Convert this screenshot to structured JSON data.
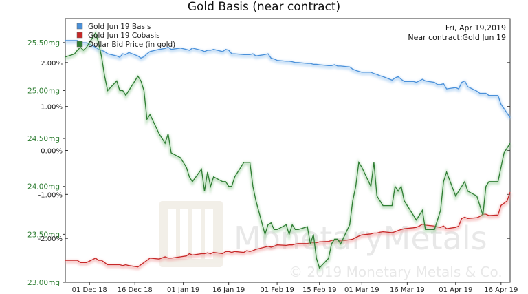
{
  "chart_data": {
    "type": "line",
    "title": "Gold Basis (near contract)",
    "info_date": "Fri, Apr 19,2019",
    "info_contract": "Near contract:Gold Jun 19",
    "watermark": {
      "brand": "MonetaryMetals",
      "copyright": "© 2019 Monetary Metals & Co."
    },
    "x_dates": [
      "2018-11-23",
      "2018-11-26",
      "2018-11-27",
      "2018-11-28",
      "2018-11-29",
      "2018-11-30",
      "2018-12-03",
      "2018-12-04",
      "2018-12-05",
      "2018-12-06",
      "2018-12-07",
      "2018-12-10",
      "2018-12-11",
      "2018-12-12",
      "2018-12-13",
      "2018-12-14",
      "2018-12-17",
      "2018-12-18",
      "2018-12-19",
      "2018-12-20",
      "2018-12-21",
      "2018-12-24",
      "2018-12-26",
      "2018-12-27",
      "2018-12-28",
      "2018-12-31",
      "2019-01-02",
      "2019-01-03",
      "2019-01-04",
      "2019-01-07",
      "2019-01-08",
      "2019-01-09",
      "2019-01-10",
      "2019-01-11",
      "2019-01-14",
      "2019-01-15",
      "2019-01-16",
      "2019-01-17",
      "2019-01-18",
      "2019-01-21",
      "2019-01-22",
      "2019-01-23",
      "2019-01-24",
      "2019-01-25",
      "2019-01-28",
      "2019-01-29",
      "2019-01-30",
      "2019-01-31",
      "2019-02-01",
      "2019-02-04",
      "2019-02-05",
      "2019-02-06",
      "2019-02-07",
      "2019-02-08",
      "2019-02-11",
      "2019-02-12",
      "2019-02-13",
      "2019-02-14",
      "2019-02-15",
      "2019-02-18",
      "2019-02-19",
      "2019-02-20",
      "2019-02-21",
      "2019-02-22",
      "2019-02-25",
      "2019-02-26",
      "2019-02-27",
      "2019-02-28",
      "2019-03-01",
      "2019-03-04",
      "2019-03-05",
      "2019-03-06",
      "2019-03-07",
      "2019-03-08",
      "2019-03-11",
      "2019-03-12",
      "2019-03-13",
      "2019-03-14",
      "2019-03-15",
      "2019-03-18",
      "2019-03-19",
      "2019-03-20",
      "2019-03-21",
      "2019-03-22",
      "2019-03-25",
      "2019-03-26",
      "2019-03-27",
      "2019-03-28",
      "2019-03-29",
      "2019-04-01",
      "2019-04-02",
      "2019-04-03",
      "2019-04-04",
      "2019-04-05",
      "2019-04-08",
      "2019-04-09",
      "2019-04-10",
      "2019-04-11",
      "2019-04-12",
      "2019-04-15",
      "2019-04-16",
      "2019-04-17",
      "2019-04-18",
      "2019-04-19"
    ],
    "x_ticks": [
      {
        "date": "2018-12-01",
        "label": "01 Dec 18"
      },
      {
        "date": "2018-12-16",
        "label": "16 Dec 18"
      },
      {
        "date": "2019-01-01",
        "label": "01 Jan 19"
      },
      {
        "date": "2019-01-16",
        "label": "16 Jan 19"
      },
      {
        "date": "2019-02-01",
        "label": "01 Feb 19"
      },
      {
        "date": "2019-02-15",
        "label": "15 Feb 19"
      },
      {
        "date": "2019-03-01",
        "label": "01 Mar 19"
      },
      {
        "date": "2019-03-16",
        "label": "16 Mar 19"
      },
      {
        "date": "2019-04-01",
        "label": "01 Apr 19"
      },
      {
        "date": "2019-04-16",
        "label": "16 Apr 19"
      }
    ],
    "x_range": [
      "2018-11-23",
      "2019-04-19"
    ],
    "y_right": {
      "unit": "%",
      "range": [
        -3.0,
        3.0
      ],
      "ticks": [
        {
          "value": 2.0,
          "label": "2.00%"
        },
        {
          "value": 1.0,
          "label": "1.00%"
        },
        {
          "value": 0.0,
          "label": "0.00%"
        },
        {
          "value": -1.0,
          "label": "-1.00%"
        },
        {
          "value": -2.0,
          "label": "-2.00%"
        }
      ]
    },
    "y_left": {
      "unit": "mg",
      "range": [
        23.0,
        25.75
      ],
      "ticks": [
        {
          "value": 25.5,
          "label": "25.50mg"
        },
        {
          "value": 25.0,
          "label": "25.00mg"
        },
        {
          "value": 24.5,
          "label": "24.50mg"
        },
        {
          "value": 24.0,
          "label": "24.00mg"
        },
        {
          "value": 23.5,
          "label": "23.50mg"
        },
        {
          "value": 23.0,
          "label": "23.00mg"
        }
      ]
    },
    "grid": false,
    "legend_position": "top-left",
    "series": [
      {
        "name": "Gold Jun 19 Basis",
        "color": "#4a90d9",
        "axis": "right",
        "values": [
          2.5,
          2.5,
          2.5,
          2.45,
          2.45,
          2.45,
          2.35,
          2.3,
          2.28,
          2.25,
          2.2,
          2.15,
          2.12,
          2.2,
          2.18,
          2.23,
          2.15,
          2.1,
          2.13,
          2.2,
          2.25,
          2.3,
          2.32,
          2.35,
          2.3,
          2.33,
          2.3,
          2.28,
          2.33,
          2.28,
          2.25,
          2.28,
          2.28,
          2.3,
          2.25,
          2.3,
          2.28,
          2.2,
          2.2,
          2.18,
          2.18,
          2.18,
          2.2,
          2.15,
          2.18,
          2.2,
          2.1,
          2.08,
          2.05,
          2.03,
          2.03,
          2.02,
          2.0,
          2.0,
          1.98,
          1.98,
          1.96,
          1.96,
          1.95,
          1.93,
          1.93,
          1.95,
          1.92,
          1.92,
          1.9,
          1.85,
          1.82,
          1.8,
          1.78,
          1.78,
          1.75,
          1.73,
          1.7,
          1.68,
          1.6,
          1.65,
          1.68,
          1.62,
          1.57,
          1.57,
          1.55,
          1.58,
          1.62,
          1.58,
          1.55,
          1.5,
          1.5,
          1.52,
          1.4,
          1.43,
          1.4,
          1.55,
          1.58,
          1.45,
          1.35,
          1.3,
          1.3,
          1.3,
          1.25,
          1.25,
          1.05,
          0.95,
          0.85,
          0.75
        ]
      },
      {
        "name": "Gold Jun 19 Cobasis",
        "color": "#c62828",
        "axis": "right",
        "values": [
          -2.5,
          -2.5,
          -2.5,
          -2.55,
          -2.55,
          -2.55,
          -2.45,
          -2.5,
          -2.5,
          -2.55,
          -2.6,
          -2.6,
          -2.6,
          -2.62,
          -2.6,
          -2.62,
          -2.65,
          -2.6,
          -2.55,
          -2.5,
          -2.45,
          -2.47,
          -2.42,
          -2.45,
          -2.45,
          -2.42,
          -2.4,
          -2.35,
          -2.38,
          -2.35,
          -2.35,
          -2.33,
          -2.35,
          -2.32,
          -2.35,
          -2.3,
          -2.3,
          -2.32,
          -2.3,
          -2.32,
          -2.28,
          -2.3,
          -2.28,
          -2.25,
          -2.2,
          -2.18,
          -2.2,
          -2.18,
          -2.15,
          -2.16,
          -2.15,
          -2.15,
          -2.13,
          -2.12,
          -2.12,
          -2.1,
          -2.1,
          -2.1,
          -2.08,
          -2.07,
          -2.05,
          -2.04,
          -2.03,
          -2.06,
          -2.03,
          -2.02,
          -1.98,
          -1.95,
          -1.92,
          -1.9,
          -1.88,
          -1.88,
          -1.86,
          -1.85,
          -1.87,
          -1.85,
          -1.82,
          -1.8,
          -1.78,
          -1.76,
          -1.75,
          -1.72,
          -1.68,
          -1.7,
          -1.72,
          -1.74,
          -1.75,
          -1.72,
          -1.78,
          -1.75,
          -1.72,
          -1.55,
          -1.52,
          -1.55,
          -1.53,
          -1.5,
          -1.45,
          -1.45,
          -1.48,
          -1.47,
          -1.25,
          -1.2,
          -1.15,
          -0.95
        ]
      },
      {
        "name": "Dollar Bid Price (in gold)",
        "color": "#2e7d32",
        "axis": "left",
        "values": [
          25.35,
          25.38,
          25.42,
          25.45,
          25.42,
          25.45,
          25.6,
          25.5,
          25.35,
          25.15,
          25.0,
          25.1,
          25.0,
          25.0,
          24.95,
          25.0,
          25.15,
          25.1,
          25.0,
          24.7,
          24.75,
          24.55,
          24.45,
          24.55,
          24.35,
          24.3,
          24.2,
          24.1,
          24.05,
          24.18,
          23.95,
          24.15,
          24.0,
          24.1,
          24.05,
          24.05,
          24.0,
          24.0,
          24.1,
          24.25,
          24.25,
          24.25,
          24.0,
          23.85,
          23.5,
          23.6,
          23.62,
          23.55,
          23.55,
          23.6,
          23.5,
          23.6,
          23.55,
          23.55,
          23.58,
          23.4,
          23.5,
          23.25,
          23.15,
          23.25,
          23.4,
          23.45,
          23.45,
          23.4,
          23.6,
          23.85,
          24.0,
          24.25,
          24.2,
          24.0,
          24.25,
          23.9,
          23.85,
          23.8,
          23.8,
          24.0,
          23.95,
          24.0,
          23.85,
          23.7,
          23.65,
          23.7,
          23.75,
          23.55,
          23.55,
          23.65,
          23.75,
          24.05,
          24.15,
          23.9,
          23.95,
          24.0,
          24.05,
          23.95,
          23.9,
          23.8,
          23.7,
          24.0,
          24.05,
          24.05,
          24.2,
          24.35,
          24.4,
          24.45
        ]
      }
    ]
  }
}
